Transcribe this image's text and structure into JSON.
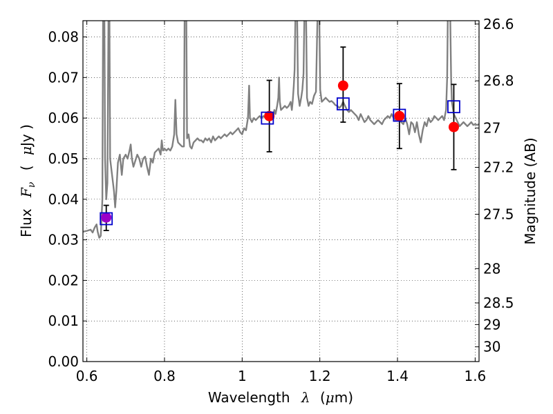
{
  "chart_data": {
    "type": "scatter",
    "xlabel": "Wavelength",
    "xlabel_symbol": "λ",
    "xlabel_unit_open": "(",
    "xlabel_unit_symbol": "μ",
    "xlabel_unit_rest": "m)",
    "ylabel_text": "Flux",
    "ylabel_symbol": "F",
    "ylabel_subscript": "ν",
    "ylabel_unit_open": "(",
    "ylabel_unit_symbol": "μ",
    "ylabel_unit_rest": "Jy )",
    "right_ylabel": "Magnitude (AB)",
    "xlim": [
      0.59,
      1.61
    ],
    "ylim": [
      0.0,
      0.084
    ],
    "grid": true,
    "x_ticks": [
      {
        "value": 0.6,
        "label": "0.6"
      },
      {
        "value": 0.8,
        "label": "0.8"
      },
      {
        "value": 1.0,
        "label": "1"
      },
      {
        "value": 1.2,
        "label": "1.2"
      },
      {
        "value": 1.4,
        "label": "1.4"
      },
      {
        "value": 1.6,
        "label": "1.6"
      }
    ],
    "y_ticks": [
      {
        "value": 0.0,
        "label": "0.00"
      },
      {
        "value": 0.01,
        "label": "0.01"
      },
      {
        "value": 0.02,
        "label": "0.02"
      },
      {
        "value": 0.03,
        "label": "0.03"
      },
      {
        "value": 0.04,
        "label": "0.04"
      },
      {
        "value": 0.05,
        "label": "0.05"
      },
      {
        "value": 0.06,
        "label": "0.06"
      },
      {
        "value": 0.07,
        "label": "0.07"
      },
      {
        "value": 0.08,
        "label": "0.08"
      }
    ],
    "magnitude_ticks": [
      {
        "value": 26.6,
        "label": "26.6"
      },
      {
        "value": 26.8,
        "label": "26.8"
      },
      {
        "value": 27.0,
        "label": "27"
      },
      {
        "value": 27.2,
        "label": "27.2"
      },
      {
        "value": 27.5,
        "label": "27.5"
      },
      {
        "value": 28.0,
        "label": "28"
      },
      {
        "value": 28.5,
        "label": "28.5"
      },
      {
        "value": 29.0,
        "label": "29"
      },
      {
        "value": 30.0,
        "label": "30"
      }
    ],
    "model_spectrum": {
      "color": "#808080",
      "points": [
        [
          0.59,
          0.032
        ],
        [
          0.6,
          0.0322
        ],
        [
          0.61,
          0.0325
        ],
        [
          0.615,
          0.0318
        ],
        [
          0.62,
          0.033
        ],
        [
          0.625,
          0.0338
        ],
        [
          0.628,
          0.032
        ],
        [
          0.632,
          0.0305
        ],
        [
          0.636,
          0.031
        ],
        [
          0.64,
          0.04
        ],
        [
          0.642,
          0.09
        ],
        [
          0.645,
          0.09
        ],
        [
          0.647,
          0.05
        ],
        [
          0.65,
          0.04
        ],
        [
          0.653,
          0.044
        ],
        [
          0.656,
          0.09
        ],
        [
          0.658,
          0.09
        ],
        [
          0.66,
          0.05
        ],
        [
          0.665,
          0.046
        ],
        [
          0.67,
          0.042
        ],
        [
          0.673,
          0.038
        ],
        [
          0.676,
          0.042
        ],
        [
          0.68,
          0.049
        ],
        [
          0.685,
          0.051
        ],
        [
          0.69,
          0.046
        ],
        [
          0.694,
          0.05
        ],
        [
          0.7,
          0.051
        ],
        [
          0.705,
          0.05
        ],
        [
          0.71,
          0.052
        ],
        [
          0.713,
          0.0535
        ],
        [
          0.716,
          0.05
        ],
        [
          0.72,
          0.048
        ],
        [
          0.725,
          0.0495
        ],
        [
          0.73,
          0.051
        ],
        [
          0.735,
          0.05
        ],
        [
          0.74,
          0.048
        ],
        [
          0.745,
          0.05
        ],
        [
          0.75,
          0.0505
        ],
        [
          0.755,
          0.048
        ],
        [
          0.76,
          0.046
        ],
        [
          0.765,
          0.05
        ],
        [
          0.77,
          0.049
        ],
        [
          0.775,
          0.0515
        ],
        [
          0.78,
          0.052
        ],
        [
          0.785,
          0.0525
        ],
        [
          0.79,
          0.051
        ],
        [
          0.793,
          0.0545
        ],
        [
          0.796,
          0.052
        ],
        [
          0.8,
          0.0525
        ],
        [
          0.805,
          0.052
        ],
        [
          0.81,
          0.0525
        ],
        [
          0.815,
          0.052
        ],
        [
          0.82,
          0.053
        ],
        [
          0.825,
          0.056
        ],
        [
          0.828,
          0.0645
        ],
        [
          0.831,
          0.056
        ],
        [
          0.835,
          0.054
        ],
        [
          0.84,
          0.0535
        ],
        [
          0.845,
          0.053
        ],
        [
          0.85,
          0.053
        ],
        [
          0.852,
          0.09
        ],
        [
          0.856,
          0.09
        ],
        [
          0.858,
          0.055
        ],
        [
          0.862,
          0.056
        ],
        [
          0.866,
          0.053
        ],
        [
          0.87,
          0.0525
        ],
        [
          0.875,
          0.054
        ],
        [
          0.88,
          0.0545
        ],
        [
          0.885,
          0.055
        ],
        [
          0.89,
          0.0545
        ],
        [
          0.895,
          0.0545
        ],
        [
          0.9,
          0.054
        ],
        [
          0.905,
          0.055
        ],
        [
          0.91,
          0.0545
        ],
        [
          0.915,
          0.055
        ],
        [
          0.92,
          0.054
        ],
        [
          0.925,
          0.0555
        ],
        [
          0.93,
          0.0545
        ],
        [
          0.935,
          0.055
        ],
        [
          0.94,
          0.0555
        ],
        [
          0.945,
          0.055
        ],
        [
          0.95,
          0.0555
        ],
        [
          0.955,
          0.056
        ],
        [
          0.96,
          0.0555
        ],
        [
          0.965,
          0.056
        ],
        [
          0.97,
          0.0565
        ],
        [
          0.975,
          0.056
        ],
        [
          0.98,
          0.0565
        ],
        [
          0.985,
          0.057
        ],
        [
          0.99,
          0.0575
        ],
        [
          0.995,
          0.0565
        ],
        [
          1.0,
          0.056
        ],
        [
          1.005,
          0.0575
        ],
        [
          1.01,
          0.057
        ],
        [
          1.015,
          0.06
        ],
        [
          1.018,
          0.068
        ],
        [
          1.02,
          0.06
        ],
        [
          1.025,
          0.059
        ],
        [
          1.03,
          0.06
        ],
        [
          1.035,
          0.0595
        ],
        [
          1.04,
          0.06
        ],
        [
          1.045,
          0.0605
        ],
        [
          1.05,
          0.06
        ],
        [
          1.055,
          0.0605
        ],
        [
          1.06,
          0.06
        ],
        [
          1.065,
          0.061
        ],
        [
          1.07,
          0.0605
        ],
        [
          1.075,
          0.061
        ],
        [
          1.08,
          0.0605
        ],
        [
          1.083,
          0.062
        ],
        [
          1.086,
          0.061
        ],
        [
          1.09,
          0.063
        ],
        [
          1.093,
          0.065
        ],
        [
          1.095,
          0.07
        ],
        [
          1.097,
          0.064
        ],
        [
          1.1,
          0.062
        ],
        [
          1.105,
          0.0625
        ],
        [
          1.11,
          0.063
        ],
        [
          1.115,
          0.0625
        ],
        [
          1.12,
          0.063
        ],
        [
          1.125,
          0.064
        ],
        [
          1.128,
          0.062
        ],
        [
          1.13,
          0.064
        ],
        [
          1.133,
          0.068
        ],
        [
          1.135,
          0.072
        ],
        [
          1.138,
          0.09
        ],
        [
          1.141,
          0.09
        ],
        [
          1.144,
          0.066
        ],
        [
          1.148,
          0.063
        ],
        [
          1.152,
          0.065
        ],
        [
          1.155,
          0.067
        ],
        [
          1.158,
          0.071
        ],
        [
          1.161,
          0.09
        ],
        [
          1.164,
          0.09
        ],
        [
          1.167,
          0.065
        ],
        [
          1.171,
          0.063
        ],
        [
          1.175,
          0.064
        ],
        [
          1.18,
          0.0635
        ],
        [
          1.185,
          0.0655
        ],
        [
          1.19,
          0.0665
        ],
        [
          1.195,
          0.09
        ],
        [
          1.198,
          0.09
        ],
        [
          1.201,
          0.067
        ],
        [
          1.205,
          0.064
        ],
        [
          1.21,
          0.0645
        ],
        [
          1.215,
          0.065
        ],
        [
          1.22,
          0.0645
        ],
        [
          1.225,
          0.064
        ],
        [
          1.23,
          0.0642
        ],
        [
          1.235,
          0.0638
        ],
        [
          1.24,
          0.0632
        ],
        [
          1.245,
          0.063
        ],
        [
          1.25,
          0.0625
        ],
        [
          1.255,
          0.063
        ],
        [
          1.26,
          0.064
        ],
        [
          1.265,
          0.063
        ],
        [
          1.27,
          0.062
        ],
        [
          1.275,
          0.0615
        ],
        [
          1.28,
          0.062
        ],
        [
          1.285,
          0.0615
        ],
        [
          1.29,
          0.061
        ],
        [
          1.295,
          0.0605
        ],
        [
          1.3,
          0.0595
        ],
        [
          1.305,
          0.061
        ],
        [
          1.31,
          0.06
        ],
        [
          1.315,
          0.059
        ],
        [
          1.32,
          0.0595
        ],
        [
          1.325,
          0.0605
        ],
        [
          1.33,
          0.0595
        ],
        [
          1.335,
          0.059
        ],
        [
          1.34,
          0.0585
        ],
        [
          1.345,
          0.059
        ],
        [
          1.35,
          0.0595
        ],
        [
          1.355,
          0.059
        ],
        [
          1.36,
          0.0585
        ],
        [
          1.365,
          0.0595
        ],
        [
          1.37,
          0.06
        ],
        [
          1.375,
          0.0605
        ],
        [
          1.38,
          0.06
        ],
        [
          1.385,
          0.061
        ],
        [
          1.39,
          0.06
        ],
        [
          1.395,
          0.0595
        ],
        [
          1.4,
          0.06
        ],
        [
          1.405,
          0.0595
        ],
        [
          1.41,
          0.059
        ],
        [
          1.415,
          0.0585
        ],
        [
          1.42,
          0.06
        ],
        [
          1.425,
          0.0585
        ],
        [
          1.43,
          0.056
        ],
        [
          1.435,
          0.059
        ],
        [
          1.44,
          0.0585
        ],
        [
          1.445,
          0.0565
        ],
        [
          1.45,
          0.059
        ],
        [
          1.455,
          0.056
        ],
        [
          1.46,
          0.054
        ],
        [
          1.465,
          0.057
        ],
        [
          1.47,
          0.059
        ],
        [
          1.475,
          0.058
        ],
        [
          1.48,
          0.06
        ],
        [
          1.485,
          0.059
        ],
        [
          1.49,
          0.0595
        ],
        [
          1.495,
          0.0605
        ],
        [
          1.5,
          0.06
        ],
        [
          1.505,
          0.0595
        ],
        [
          1.51,
          0.06
        ],
        [
          1.515,
          0.0605
        ],
        [
          1.52,
          0.0595
        ],
        [
          1.525,
          0.062
        ],
        [
          1.528,
          0.07
        ],
        [
          1.53,
          0.09
        ],
        [
          1.535,
          0.09
        ],
        [
          1.538,
          0.07
        ],
        [
          1.54,
          0.064
        ],
        [
          1.545,
          0.061
        ],
        [
          1.55,
          0.06
        ],
        [
          1.555,
          0.059
        ],
        [
          1.56,
          0.058
        ],
        [
          1.565,
          0.0585
        ],
        [
          1.57,
          0.059
        ],
        [
          1.575,
          0.0585
        ],
        [
          1.58,
          0.058
        ],
        [
          1.585,
          0.0585
        ],
        [
          1.59,
          0.059
        ],
        [
          1.595,
          0.0583
        ],
        [
          1.6,
          0.0585
        ],
        [
          1.605,
          0.0583
        ],
        [
          1.61,
          0.0585
        ]
      ]
    },
    "observations": [
      {
        "x": 0.65,
        "y": 0.0355,
        "err_low": 0.0032,
        "err_high": 0.003,
        "color": "#9b00c8"
      },
      {
        "x": 1.07,
        "y": 0.0605,
        "err_low": 0.0088,
        "err_high": 0.0088,
        "color": "#ff0000"
      },
      {
        "x": 1.26,
        "y": 0.068,
        "err_low": 0.009,
        "err_high": 0.0095,
        "color": "#ff0000"
      },
      {
        "x": 1.405,
        "y": 0.0605,
        "err_low": 0.008,
        "err_high": 0.008,
        "color": "#ff0000"
      },
      {
        "x": 1.545,
        "y": 0.0578,
        "err_low": 0.0105,
        "err_high": 0.0105,
        "color": "#ff0000"
      }
    ],
    "model_photometry": {
      "color": "#0000cc",
      "points": [
        {
          "x": 0.65,
          "y": 0.0352
        },
        {
          "x": 1.065,
          "y": 0.06
        },
        {
          "x": 1.26,
          "y": 0.0635
        },
        {
          "x": 1.405,
          "y": 0.0607
        },
        {
          "x": 1.545,
          "y": 0.0628
        }
      ]
    }
  }
}
